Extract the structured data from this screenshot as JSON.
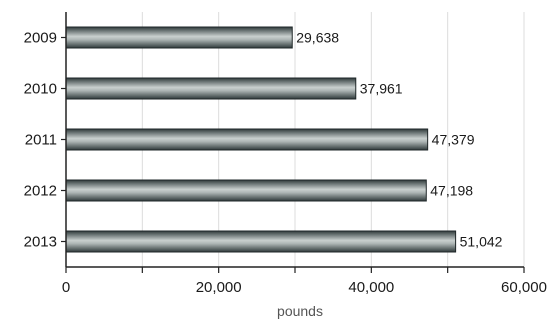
{
  "chart_data": {
    "type": "bar",
    "orientation": "horizontal",
    "categories": [
      "2009",
      "2010",
      "2011",
      "2012",
      "2013"
    ],
    "values": [
      29638,
      37961,
      47379,
      47198,
      51042
    ],
    "data_labels": [
      "29,638",
      "37,961",
      "47,379",
      "47,198",
      "51,042"
    ],
    "x_ticks": [
      0,
      20000,
      40000,
      60000
    ],
    "x_tick_labels": [
      "0",
      "20,000",
      "40,000",
      "60,000"
    ],
    "xlabel": "pounds",
    "xlim": [
      0,
      60000
    ],
    "grid": true,
    "legend": "none",
    "bar_color": "#4a5556",
    "bar_highlight": "#c9d0cf"
  }
}
